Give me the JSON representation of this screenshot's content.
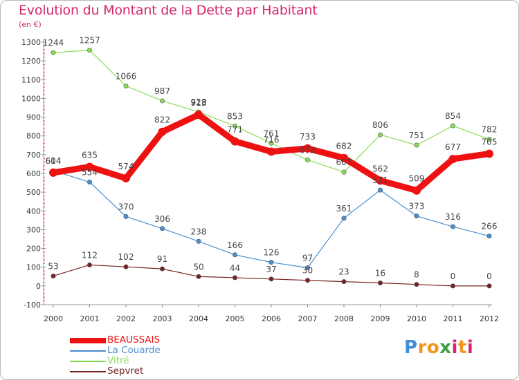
{
  "chart_data": {
    "type": "line",
    "title": "Evolution du Montant de la Dette par Habitant",
    "subtitle": "(en €)",
    "x": [
      "2000",
      "2001",
      "2002",
      "2003",
      "2004",
      "2005",
      "2006",
      "2007",
      "2008",
      "2009",
      "2010",
      "2011",
      "2012"
    ],
    "ylim": [
      -100,
      1300
    ],
    "yticks": [
      -100,
      0,
      100,
      200,
      300,
      400,
      500,
      600,
      700,
      800,
      900,
      1000,
      1100,
      1200,
      1300
    ],
    "grid": false,
    "legend_position": "bottom-left",
    "series": [
      {
        "name": "BEAUSSAIS",
        "color": "#ee1111",
        "values": [
          604,
          635,
          574,
          822,
          913,
          771,
          716,
          733,
          682,
          562,
          509,
          677,
          705
        ],
        "labels": [
          "604",
          "635",
          "574",
          "822",
          "913",
          "771",
          "716",
          "733",
          "682",
          "562",
          "509",
          "677",
          "705"
        ]
      },
      {
        "name": "La Couarde",
        "color": "#4a8fd0",
        "values": [
          614,
          554,
          370,
          306,
          238,
          166,
          126,
          97,
          361,
          511,
          373,
          316,
          266
        ],
        "labels": [
          "614",
          "554",
          "370",
          "306",
          "238",
          "166",
          "126",
          "97",
          "361",
          "511",
          "373",
          "316",
          "266"
        ]
      },
      {
        "name": "Vitré",
        "color": "#88dd55",
        "values": [
          1244,
          1257,
          1066,
          987,
          928,
          853,
          761,
          672,
          607,
          806,
          751,
          854,
          782
        ],
        "labels": [
          "1244",
          "1257",
          "1066",
          "987",
          "928",
          "853",
          "761",
          "672",
          "607",
          "806",
          "751",
          "854",
          "782"
        ]
      },
      {
        "name": "Sepvret",
        "color": "#772222",
        "values": [
          53,
          112,
          102,
          91,
          50,
          44,
          37,
          30,
          23,
          16,
          8,
          0,
          0
        ],
        "labels": [
          "53",
          "112",
          "102",
          "91",
          "50",
          "44",
          "37",
          "30",
          "23",
          "16",
          "8",
          "0",
          "0"
        ]
      }
    ]
  },
  "logo": {
    "letters": [
      "P",
      "r",
      "o",
      "x",
      "i",
      "t",
      "i"
    ],
    "colors": [
      "#3c8fd8",
      "#f0951e",
      "#f0951e",
      "#3aa040",
      "#d7266b",
      "#f0951e",
      "#d7266b"
    ]
  }
}
